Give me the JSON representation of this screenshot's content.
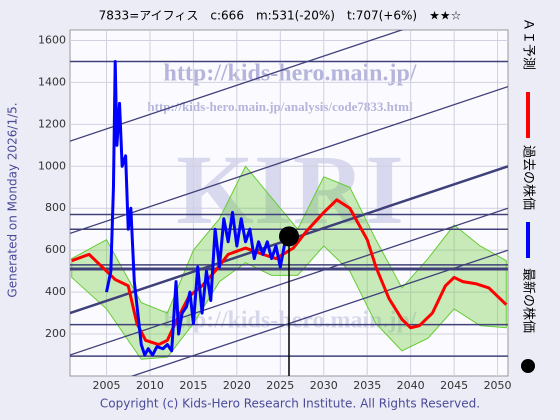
{
  "chart_data": {
    "type": "line",
    "title": "7833=アイフィス　c:666　m:531(-20%)　t:707(+6%)　★★☆",
    "side_note": "Generated on Monday 2026/1/5.",
    "footer": "Copyright (c) Kids-Hero Research Institute. All Rights Reserved.",
    "watermarks": [
      "http://kids-hero.main.jp/",
      "http://kids-hero.main.jp/analysis/code7833.html",
      "KIRI",
      "http://kids-hero.main.jp/"
    ],
    "xlim": [
      2000.8,
      2051.2
    ],
    "ylim": [
      0,
      1650
    ],
    "xticks": [
      2005,
      2010,
      2015,
      2020,
      2025,
      2030,
      2035,
      2040,
      2045,
      2050
    ],
    "yticks": [
      200,
      400,
      600,
      800,
      1000,
      1200,
      1400,
      1600
    ],
    "grid": true,
    "series": [
      {
        "name": "ＡＩ予測",
        "color": "#ff0000",
        "x": [
          2001,
          2003,
          2004.5,
          2006,
          2007.5,
          2008.5,
          2009.5,
          2011,
          2012,
          2013,
          2014.5,
          2016,
          2017.5,
          2019,
          2021,
          2023,
          2024.5,
          2026.5,
          2028,
          2030,
          2031.5,
          2033,
          2035,
          2036,
          2037.5,
          2039,
          2040,
          2041,
          2042.5,
          2044,
          2045,
          2046,
          2047.5,
          2049,
          2050,
          2051
        ],
        "values": [
          550,
          580,
          520,
          460,
          430,
          250,
          170,
          150,
          170,
          260,
          380,
          430,
          500,
          580,
          610,
          580,
          560,
          610,
          690,
          780,
          840,
          800,
          650,
          520,
          370,
          270,
          230,
          240,
          300,
          430,
          470,
          450,
          440,
          420,
          380,
          340
        ]
      },
      {
        "name": "過去の株価",
        "color": "#0000ff",
        "x": [
          2005,
          2005.5,
          2005.8,
          2006,
          2006.2,
          2006.5,
          2006.8,
          2007.2,
          2007.5,
          2007.8,
          2008.2,
          2008.6,
          2009,
          2009.4,
          2009.8,
          2010.3,
          2010.8,
          2011.5,
          2012,
          2012.5,
          2013,
          2013.3,
          2013.7,
          2014.2,
          2014.6,
          2015,
          2015.5,
          2016,
          2016.5,
          2017,
          2017.5,
          2018,
          2018.5,
          2019,
          2019.5,
          2020,
          2020.5,
          2021,
          2021.5,
          2022,
          2022.5,
          2023,
          2023.5,
          2024,
          2024.5,
          2025,
          2025.5,
          2025.9
        ],
        "values": [
          400,
          500,
          900,
          1500,
          1100,
          1300,
          1000,
          1050,
          700,
          800,
          450,
          300,
          150,
          100,
          130,
          100,
          140,
          130,
          150,
          120,
          450,
          200,
          300,
          330,
          400,
          250,
          520,
          300,
          500,
          360,
          700,
          520,
          750,
          640,
          780,
          620,
          750,
          640,
          700,
          560,
          640,
          580,
          640,
          560,
          620,
          520,
          630,
          666
        ]
      }
    ],
    "latest": {
      "name": "最新の株価",
      "x": 2026,
      "value": 666,
      "color": "#000000"
    },
    "hlines": [
      1500,
      770,
      700,
      530,
      510,
      245,
      95
    ],
    "trend_lines": [
      {
        "x": [
          2000.8,
          2051.2
        ],
        "values": [
          -100,
          600
        ]
      },
      {
        "x": [
          2000.8,
          2051.2
        ],
        "values": [
          100,
          800
        ]
      },
      {
        "x": [
          2000.8,
          2051.2
        ],
        "values": [
          300,
          1000
        ]
      },
      {
        "x": [
          2000.8,
          2051.2
        ],
        "values": [
          680,
          1380
        ]
      },
      {
        "x": [
          2000.8,
          2051.2
        ],
        "values": [
          1120,
          1820
        ]
      }
    ],
    "bands": [
      {
        "color": "#66cc33",
        "x": [
          2001,
          2005,
          2009,
          2012,
          2015,
          2018,
          2021,
          2024,
          2027,
          2030,
          2033,
          2036,
          2039,
          2042,
          2045,
          2048,
          2051
        ],
        "upper": [
          560,
          650,
          350,
          300,
          600,
          750,
          1000,
          850,
          700,
          950,
          900,
          650,
          420,
          560,
          720,
          620,
          550
        ],
        "lower": [
          470,
          320,
          80,
          90,
          250,
          450,
          540,
          480,
          480,
          620,
          500,
          250,
          120,
          180,
          320,
          240,
          230
        ]
      }
    ]
  }
}
